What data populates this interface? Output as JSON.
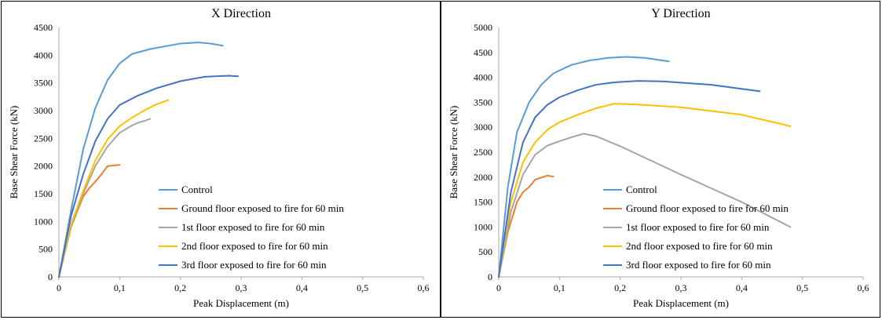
{
  "chart_data": [
    {
      "type": "line",
      "title": "X Direction",
      "xlabel": "Peak Displacement (m)",
      "ylabel": "Base Shear Force (kN)",
      "xlim": [
        0,
        0.6
      ],
      "ylim": [
        0,
        4500
      ],
      "xticks": [
        0,
        0.1,
        0.2,
        0.3,
        0.4,
        0.5,
        0.6
      ],
      "xtick_labels": [
        "0",
        "0,1",
        "0,2",
        "0,3",
        "0,4",
        "0,5",
        "0,6"
      ],
      "yticks": [
        0,
        500,
        1000,
        1500,
        2000,
        2500,
        3000,
        3500,
        4000,
        4500
      ],
      "ytick_labels": [
        "0",
        "500",
        "1000",
        "1500",
        "2000",
        "2500",
        "3000",
        "3500",
        "4000",
        "4500"
      ],
      "grid": false,
      "legend_position": "bottom-right",
      "series": [
        {
          "name": "Control",
          "color": "#5B9BD5",
          "x": [
            0,
            0.02,
            0.04,
            0.06,
            0.08,
            0.1,
            0.12,
            0.15,
            0.18,
            0.2,
            0.23,
            0.25,
            0.27
          ],
          "y": [
            0,
            1200,
            2300,
            3050,
            3550,
            3850,
            4020,
            4110,
            4170,
            4210,
            4230,
            4210,
            4170
          ]
        },
        {
          "name": "Ground floor exposed to fire for 60 min",
          "color": "#ED7D31",
          "x": [
            0,
            0.02,
            0.04,
            0.05,
            0.06,
            0.07,
            0.08,
            0.09,
            0.1
          ],
          "y": [
            0,
            900,
            1450,
            1600,
            1720,
            1850,
            2000,
            2010,
            2020
          ]
        },
        {
          "name": "1st floor exposed to fire for 60 min",
          "color": "#A5A5A5",
          "x": [
            0,
            0.02,
            0.04,
            0.06,
            0.08,
            0.1,
            0.12,
            0.13,
            0.14,
            0.15
          ],
          "y": [
            0,
            900,
            1500,
            2000,
            2350,
            2600,
            2730,
            2780,
            2810,
            2850
          ]
        },
        {
          "name": "2nd floor exposed to fire for 60 min",
          "color": "#FFC000",
          "x": [
            0,
            0.02,
            0.04,
            0.06,
            0.08,
            0.1,
            0.12,
            0.14,
            0.16,
            0.18
          ],
          "y": [
            0,
            950,
            1550,
            2100,
            2480,
            2720,
            2870,
            3000,
            3110,
            3190
          ]
        },
        {
          "name": "3rd floor exposed to fire for 60 min",
          "color": "#4472C4",
          "x": [
            0,
            0.02,
            0.04,
            0.06,
            0.08,
            0.1,
            0.13,
            0.16,
            0.2,
            0.24,
            0.28,
            0.295
          ],
          "y": [
            0,
            1100,
            1850,
            2450,
            2850,
            3100,
            3270,
            3400,
            3530,
            3610,
            3630,
            3620
          ]
        }
      ],
      "legend": [
        "Control",
        "Ground floor exposed to fire for 60 min",
        "1st floor exposed to fire for 60 min",
        "2nd floor exposed to fire for 60 min",
        "3rd floor exposed to fire for 60 min"
      ]
    },
    {
      "type": "line",
      "title": "Y Direction",
      "xlabel": "Peak Displacement (m)",
      "ylabel": "Base Shear Force (kN)",
      "xlim": [
        0,
        0.6
      ],
      "ylim": [
        0,
        5000
      ],
      "xticks": [
        0,
        0.1,
        0.2,
        0.3,
        0.4,
        0.5,
        0.6
      ],
      "xtick_labels": [
        "0",
        "0,1",
        "0,2",
        "0,3",
        "0,4",
        "0,5",
        "0,6"
      ],
      "yticks": [
        0,
        500,
        1000,
        1500,
        2000,
        2500,
        3000,
        3500,
        4000,
        4500,
        5000
      ],
      "ytick_labels": [
        "0",
        "500",
        "1000",
        "1500",
        "2000",
        "2500",
        "3000",
        "3500",
        "4000",
        "4500",
        "5000"
      ],
      "grid": false,
      "legend_position": "bottom-right",
      "series": [
        {
          "name": "Control",
          "color": "#5B9BD5",
          "x": [
            0,
            0.015,
            0.03,
            0.05,
            0.07,
            0.09,
            0.12,
            0.15,
            0.18,
            0.21,
            0.24,
            0.28
          ],
          "y": [
            0,
            1800,
            2900,
            3500,
            3850,
            4080,
            4250,
            4340,
            4390,
            4410,
            4390,
            4320
          ]
        },
        {
          "name": "Ground floor exposed to fire for 60 min",
          "color": "#ED7D31",
          "x": [
            0,
            0.015,
            0.03,
            0.04,
            0.05,
            0.06,
            0.07,
            0.08,
            0.09
          ],
          "y": [
            0,
            900,
            1500,
            1700,
            1800,
            1950,
            1990,
            2030,
            2010
          ]
        },
        {
          "name": "1st floor exposed to fire for 60 min",
          "color": "#A5A5A5",
          "x": [
            0,
            0.02,
            0.04,
            0.06,
            0.08,
            0.1,
            0.12,
            0.14,
            0.16,
            0.2,
            0.3,
            0.4,
            0.48
          ],
          "y": [
            0,
            1300,
            2050,
            2450,
            2630,
            2720,
            2800,
            2870,
            2820,
            2620,
            2050,
            1500,
            1000
          ]
        },
        {
          "name": "2nd floor exposed to fire for 60 min",
          "color": "#FFC000",
          "x": [
            0,
            0.02,
            0.04,
            0.06,
            0.08,
            0.1,
            0.13,
            0.16,
            0.19,
            0.22,
            0.3,
            0.4,
            0.48
          ],
          "y": [
            0,
            1500,
            2300,
            2700,
            2950,
            3100,
            3250,
            3380,
            3470,
            3460,
            3400,
            3250,
            3020
          ]
        },
        {
          "name": "3rd floor exposed to fire for 60 min",
          "color": "#4472C4",
          "x": [
            0,
            0.02,
            0.04,
            0.06,
            0.08,
            0.1,
            0.13,
            0.16,
            0.19,
            0.23,
            0.27,
            0.35,
            0.43
          ],
          "y": [
            0,
            1700,
            2700,
            3200,
            3450,
            3600,
            3740,
            3850,
            3900,
            3930,
            3920,
            3850,
            3720
          ]
        }
      ],
      "legend": [
        "Control",
        "Ground floor exposed to fire for 60 min",
        "1st floor exposed to fire for 60 min",
        "2nd floor exposed to fire for 60 min",
        "3rd floor exposed to fire for 60 min"
      ]
    }
  ]
}
